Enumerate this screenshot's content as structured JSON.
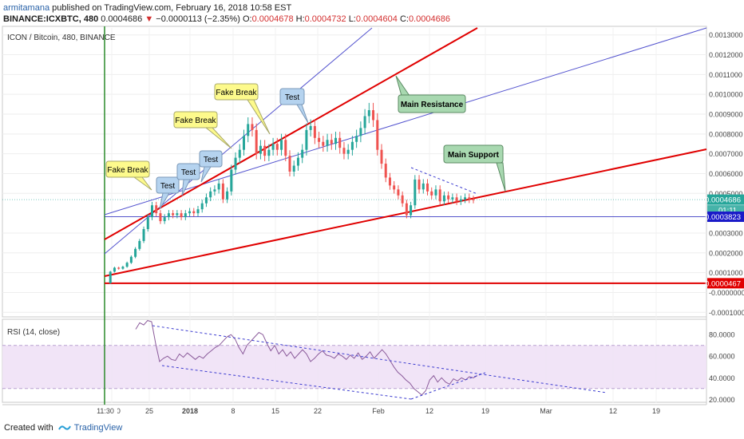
{
  "header": {
    "author": "armitamana",
    "published": " published on TradingView.com, February 16, 2018 10:58 EST",
    "symbol": "BINANCE:ICXBTC, 480",
    "last": "0.0004686",
    "change_arrow": "▼",
    "change": "−0.0000113 (−2.35%)",
    "o_label": "O:",
    "o_value": "0.0004678",
    "h_label": "H:",
    "h_value": "0.0004732",
    "l_label": "L:",
    "l_value": "0.0004604",
    "c_label": "C:",
    "c_value": "0.0004686"
  },
  "chart_data": {
    "type": "candlestick",
    "title": "ICON / Bitcoin, 480, BINANCE",
    "y_axis": {
      "ticks": [
        "0.0013000",
        "0.0012000",
        "0.0011000",
        "0.0010000",
        "0.0009000",
        "0.0008000",
        "0.0007000",
        "0.0006000",
        "0.0005000",
        "0.0003000",
        "0.0002000",
        "0.0001000",
        "-0.0000000",
        "-0.0001000"
      ],
      "tick_values": [
        0.0013,
        0.0012,
        0.0011,
        0.001,
        0.0009,
        0.0008,
        0.0007,
        0.0006,
        0.0005,
        0.0003,
        0.0002,
        0.0001,
        0.0,
        -0.0001
      ],
      "ylim": [
        -0.000115,
        0.001335
      ]
    },
    "x_axis": {
      "ticks": [
        "11:30",
        "25",
        "2018",
        "8",
        "15",
        "22",
        "Feb",
        "12",
        "19",
        "Mar",
        "12",
        "19"
      ],
      "tick_bold": [
        "2018"
      ]
    },
    "price_labels": [
      {
        "text": "0.0004686",
        "value": 0.0004686,
        "color": "#26a69a",
        "countdown": "01:11"
      },
      {
        "text": "0.0003823",
        "value": 0.0003823,
        "color": "#1a1ac8"
      },
      {
        "text": "0.0000467",
        "value": 4.67e-05,
        "color": "#e00000"
      }
    ],
    "annotations": [
      {
        "text": "Fake Break",
        "style": "yellow"
      },
      {
        "text": "Test",
        "style": "blue"
      },
      {
        "text": "Test",
        "style": "blue"
      },
      {
        "text": "Test",
        "style": "blue"
      },
      {
        "text": "Fake Break",
        "style": "yellow"
      },
      {
        "text": "Fake Break",
        "style": "yellow"
      },
      {
        "text": "Test",
        "style": "blue"
      },
      {
        "text": "Main Resistance",
        "style": "green"
      },
      {
        "text": "Main Support",
        "style": "green"
      }
    ],
    "close_series": [
      4.67e-05,
      0.000105,
      0.000125,
      0.00012,
      0.00013,
      0.00015,
      0.00018,
      0.00022,
      0.00026,
      0.00032,
      0.00038,
      0.00044,
      0.0004,
      0.00036,
      0.00038,
      0.0004,
      0.00039,
      0.0004,
      0.00038,
      0.0004,
      0.00041,
      0.0004,
      0.00042,
      0.00045,
      0.00048,
      0.00051,
      0.00052,
      0.00055,
      0.00047,
      0.00051,
      0.00062,
      0.00068,
      0.00072,
      0.00079,
      0.00085,
      0.00082,
      0.0007,
      0.00074,
      0.00069,
      0.00072,
      0.00075,
      0.00072,
      0.00077,
      0.00069,
      0.00061,
      0.00064,
      0.00068,
      0.00072,
      0.00082,
      0.00084,
      0.00078,
      0.00076,
      0.00074,
      0.00077,
      0.00075,
      0.00078,
      0.00073,
      0.0007,
      0.00072,
      0.00076,
      0.00079,
      0.00083,
      0.00089,
      0.00092,
      0.00087,
      0.00072,
      0.00065,
      0.00058,
      0.00054,
      0.00052,
      0.00049,
      0.00045,
      0.00039,
      0.00044,
      0.00057,
      0.00052,
      0.00055,
      0.00051,
      0.00049,
      0.00052,
      0.00046,
      0.00049,
      0.00047,
      0.00048,
      0.00046,
      0.00047,
      0.00048,
      0.00047,
      0.0004686
    ],
    "rsi": {
      "label": "RSI (14, close)",
      "ticks": [
        "80.0000",
        "60.0000",
        "40.0000",
        "20.0000"
      ],
      "tick_values": [
        80,
        60,
        40,
        20
      ],
      "band": [
        30,
        70
      ],
      "ylim": [
        18,
        92
      ],
      "values": [
        85,
        91,
        89,
        93,
        92,
        72,
        55,
        58,
        60,
        57,
        56,
        62,
        59,
        63,
        60,
        57,
        60,
        58,
        62,
        65,
        68,
        70,
        74,
        78,
        80,
        76,
        68,
        62,
        70,
        74,
        78,
        82,
        80,
        72,
        65,
        70,
        62,
        66,
        60,
        64,
        58,
        62,
        66,
        62,
        55,
        58,
        62,
        65,
        61,
        60,
        58,
        62,
        60,
        57,
        61,
        58,
        63,
        57,
        60,
        64,
        58,
        62,
        66,
        62,
        56,
        50,
        45,
        42,
        38,
        35,
        30,
        27,
        24,
        28,
        38,
        42,
        36,
        40,
        36,
        34,
        39,
        37,
        40,
        38,
        41,
        40,
        42
      ]
    },
    "grid": true,
    "crosshair_x_label": "11:30"
  },
  "footer": {
    "created": "Created with",
    "brand": "TradingView"
  }
}
